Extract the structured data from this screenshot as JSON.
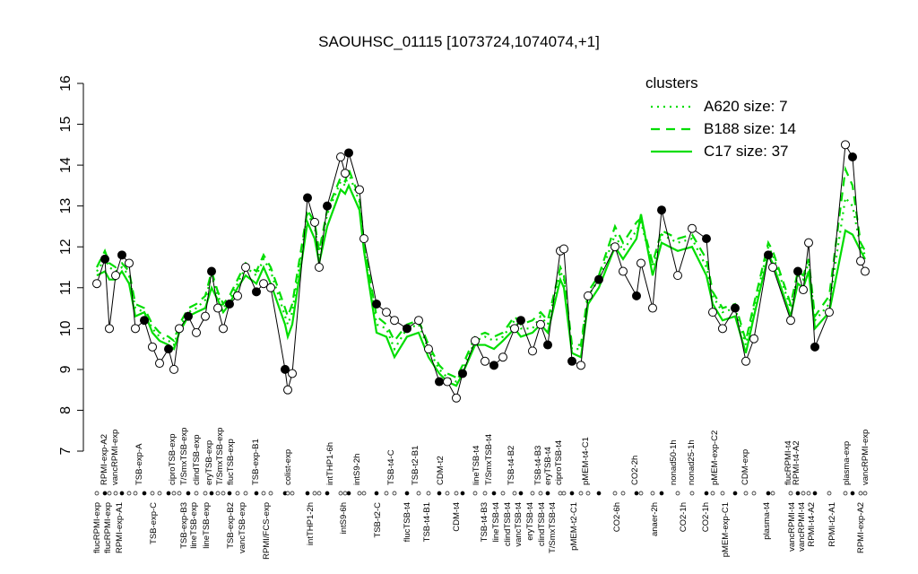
{
  "chart_data": {
    "type": "line",
    "title": "SAOUHSC_01115 [1073724,1074074,+1]",
    "legend_title": "clusters",
    "legend_color": "#00dd00",
    "x": [
      108,
      117,
      122,
      129,
      136,
      144,
      151,
      161,
      170,
      178,
      188,
      194,
      200,
      210,
      219,
      229,
      236,
      243,
      249,
      256,
      265,
      274,
      286,
      294,
      302,
      318,
      321,
      326,
      343,
      351,
      356,
      365,
      380,
      385,
      389,
      401,
      406,
      420,
      431,
      440,
      454,
      467,
      478,
      490,
      499,
      509,
      516,
      530,
      541,
      551,
      561,
      574,
      581,
      594,
      603,
      611,
      625,
      629,
      638,
      648,
      656,
      668,
      686,
      695,
      710,
      715,
      728,
      738,
      756,
      772,
      788,
      795,
      806,
      820,
      832,
      841,
      857,
      862,
      882,
      890,
      896,
      902,
      909,
      925,
      943,
      951,
      960,
      965
    ],
    "xlim": [
      100,
      972
    ],
    "ylim": [
      7,
      16
    ],
    "yticks": [
      7,
      8,
      9,
      10,
      11,
      12,
      13,
      14,
      15,
      16
    ],
    "series": [
      {
        "name": "A620 size: 7",
        "color": "#00dd00",
        "dash": "2,5",
        "values": [
          11.4,
          11.7,
          11.5,
          11.4,
          11.5,
          11.3,
          10.5,
          10.4,
          10.0,
          9.8,
          9.7,
          9.6,
          10.0,
          10.4,
          10.5,
          10.7,
          11.3,
          10.8,
          10.5,
          10.7,
          11.1,
          11.5,
          11.3,
          11.7,
          11.4,
          10.3,
          10.1,
          10.4,
          12.8,
          12.5,
          11.8,
          12.8,
          13.6,
          13.5,
          13.8,
          13.1,
          12.0,
          10.1,
          10.0,
          9.5,
          10.0,
          10.1,
          9.5,
          9.0,
          8.8,
          8.7,
          9.0,
          9.7,
          9.8,
          9.7,
          9.8,
          10.2,
          10.0,
          10.0,
          10.3,
          10.1,
          11.4,
          11.2,
          9.5,
          9.5,
          10.8,
          11.2,
          12.3,
          11.9,
          12.4,
          12.6,
          11.5,
          12.3,
          12.1,
          12.2,
          11.5,
          10.8,
          10.4,
          10.5,
          9.6,
          10.5,
          12.0,
          11.8,
          10.5,
          11.3,
          11.2,
          11.6,
          10.2,
          10.6,
          13.2,
          13.0,
          12.0,
          11.8
        ]
      },
      {
        "name": "B188 size: 14",
        "color": "#00dd00",
        "dash": "10,7",
        "values": [
          11.5,
          11.9,
          11.6,
          11.5,
          11.6,
          11.4,
          10.6,
          10.5,
          10.1,
          9.9,
          9.8,
          9.7,
          10.1,
          10.5,
          10.6,
          10.8,
          11.4,
          10.9,
          10.6,
          10.8,
          11.2,
          11.6,
          11.4,
          11.8,
          11.5,
          10.5,
          10.3,
          10.6,
          12.9,
          12.6,
          11.9,
          12.9,
          13.7,
          13.6,
          13.9,
          13.2,
          12.1,
          10.3,
          10.1,
          9.7,
          10.1,
          10.2,
          9.6,
          9.1,
          8.9,
          8.8,
          9.1,
          9.8,
          9.9,
          9.8,
          9.9,
          10.3,
          10.1,
          10.2,
          10.4,
          10.2,
          11.5,
          11.3,
          9.6,
          9.6,
          10.9,
          11.3,
          12.5,
          12.1,
          12.6,
          12.7,
          11.6,
          12.4,
          12.2,
          12.3,
          11.7,
          10.9,
          10.5,
          10.6,
          9.7,
          10.6,
          12.1,
          11.9,
          10.6,
          11.4,
          11.3,
          11.7,
          10.3,
          10.8,
          13.9,
          13.5,
          12.1,
          11.9
        ]
      },
      {
        "name": "C17 size: 37",
        "color": "#00dd00",
        "dash": "",
        "values": [
          11.3,
          11.4,
          11.2,
          11.2,
          11.4,
          11.1,
          10.3,
          10.4,
          9.9,
          9.7,
          9.6,
          9.5,
          9.9,
          10.3,
          10.4,
          10.5,
          11.0,
          10.7,
          10.4,
          10.6,
          11.0,
          11.3,
          11.1,
          11.5,
          11.1,
          10.1,
          9.8,
          10.1,
          12.6,
          12.2,
          11.6,
          12.5,
          13.4,
          13.3,
          13.5,
          12.9,
          11.9,
          9.9,
          9.8,
          9.3,
          9.8,
          9.9,
          9.3,
          8.9,
          8.7,
          8.6,
          8.9,
          9.6,
          9.6,
          9.5,
          9.7,
          10.0,
          9.8,
          9.9,
          10.1,
          9.9,
          11.2,
          11.0,
          9.4,
          9.3,
          10.6,
          11.0,
          12.0,
          11.7,
          12.2,
          12.8,
          11.3,
          12.1,
          11.9,
          12.0,
          11.3,
          10.6,
          10.2,
          10.3,
          9.4,
          10.3,
          11.8,
          11.6,
          10.3,
          11.1,
          11.0,
          11.4,
          10.0,
          10.4,
          12.4,
          12.3,
          11.9,
          11.7
        ]
      },
      {
        "color": "#000000",
        "markers": true,
        "values": [
          11.1,
          11.7,
          10.0,
          11.3,
          11.8,
          11.6,
          10.0,
          10.2,
          9.55,
          9.15,
          9.5,
          9.0,
          10.0,
          10.3,
          9.9,
          10.3,
          11.4,
          10.5,
          10.0,
          10.6,
          10.8,
          11.5,
          10.9,
          11.1,
          11.0,
          9.0,
          8.5,
          8.9,
          13.2,
          12.6,
          11.5,
          13.0,
          14.2,
          13.8,
          14.3,
          13.4,
          12.2,
          10.6,
          10.4,
          10.2,
          10.0,
          10.2,
          9.5,
          8.7,
          8.7,
          8.3,
          8.9,
          9.7,
          9.2,
          9.1,
          9.3,
          10.0,
          10.2,
          9.45,
          10.1,
          9.6,
          11.9,
          11.95,
          9.2,
          9.1,
          10.8,
          11.2,
          12.0,
          11.4,
          10.8,
          11.6,
          10.5,
          12.9,
          11.3,
          12.45,
          12.2,
          10.4,
          10.0,
          10.5,
          9.2,
          9.75,
          11.8,
          11.5,
          10.2,
          11.4,
          10.95,
          12.1,
          9.55,
          10.4,
          14.5,
          14.2,
          11.65,
          11.4
        ]
      }
    ],
    "xticks_top": [
      {
        "value": 116,
        "label": "RPMI-exp-A2"
      },
      {
        "value": 128,
        "label": "vancRPMI-exp"
      },
      {
        "value": 155,
        "label": "TSB-exp-A"
      },
      {
        "value": 192,
        "label": "ciproTSB-exp"
      },
      {
        "value": 205,
        "label": "T/SmxTSB-exp"
      },
      {
        "value": 219,
        "label": "clindTSB-exp"
      },
      {
        "value": 233,
        "label": "eryTSB-exp"
      },
      {
        "value": 245,
        "label": "T/SmxTSB-exp"
      },
      {
        "value": 257,
        "label": "flucTSB-exp"
      },
      {
        "value": 285,
        "label": "TSB-exp-B1"
      },
      {
        "value": 321,
        "label": "colist-exp"
      },
      {
        "value": 368,
        "label": "intTHP1-6h"
      },
      {
        "value": 398,
        "label": "intS9-2h"
      },
      {
        "value": 436,
        "label": "TSB-t4-C"
      },
      {
        "value": 463,
        "label": "TSB-t2-B1"
      },
      {
        "value": 491,
        "label": "CDM-t2"
      },
      {
        "value": 531,
        "label": "lineTSB-t4"
      },
      {
        "value": 545,
        "label": "T/SmxTSB-t4"
      },
      {
        "value": 570,
        "label": "TSB-t4-B2"
      },
      {
        "value": 600,
        "label": "TSB-t4-B3"
      },
      {
        "value": 611,
        "label": "eryTSB-t4"
      },
      {
        "value": 623,
        "label": "ciproTSB-t4"
      },
      {
        "value": 653,
        "label": "pMEM-t4-C1"
      },
      {
        "value": 708,
        "label": "CO2-2h"
      },
      {
        "value": 751,
        "label": "nonad50-1h"
      },
      {
        "value": 771,
        "label": "nonad25-1h"
      },
      {
        "value": 797,
        "label": "pMEM-exp-C2"
      },
      {
        "value": 831,
        "label": "CDM-exp"
      },
      {
        "value": 879,
        "label": "flucRPMI-t4"
      },
      {
        "value": 888,
        "label": "RPMI-t4-A2"
      },
      {
        "value": 944,
        "label": "plasma-exp"
      },
      {
        "value": 965,
        "label": "vancRPMI-exp"
      }
    ],
    "xticks_bottom": [
      {
        "value": 108,
        "label": "flucRPMI-exp"
      },
      {
        "value": 120,
        "label": "flucRPMI-exp"
      },
      {
        "value": 133,
        "label": "RPMI-exp-A1"
      },
      {
        "value": 171,
        "label": "TSB-exp-C"
      },
      {
        "value": 205,
        "label": "TSB-exp-B3"
      },
      {
        "value": 216,
        "label": "lineTSB-exp"
      },
      {
        "value": 230,
        "label": "lineTSB-exp"
      },
      {
        "value": 257,
        "label": "TSB-exp-B2"
      },
      {
        "value": 270,
        "label": "vancTSB-exp"
      },
      {
        "value": 297,
        "label": "RPMI/FCS-exp"
      },
      {
        "value": 346,
        "label": "intTHP1-2h"
      },
      {
        "value": 383,
        "label": "intS9-6h"
      },
      {
        "value": 421,
        "label": "TSB-t2-C"
      },
      {
        "value": 454,
        "label": "flucTSB-t4"
      },
      {
        "value": 476,
        "label": "TSB-t4-B1"
      },
      {
        "value": 509,
        "label": "CDM-t4"
      },
      {
        "value": 540,
        "label": "TSB-t4-B3"
      },
      {
        "value": 553,
        "label": "lineTSB-t4"
      },
      {
        "value": 566,
        "label": "clindTSB-t4"
      },
      {
        "value": 578,
        "label": "vancTSB-t4"
      },
      {
        "value": 591,
        "label": "eryTSB-t4"
      },
      {
        "value": 604,
        "label": "clindTSB-t4"
      },
      {
        "value": 616,
        "label": "T/SmxTSB-t4"
      },
      {
        "value": 640,
        "label": "pMEM-t2-C1"
      },
      {
        "value": 688,
        "label": "CO2-6h"
      },
      {
        "value": 730,
        "label": "anaer-2h"
      },
      {
        "value": 762,
        "label": "CO2-1h"
      },
      {
        "value": 787,
        "label": "CO2-1h"
      },
      {
        "value": 809,
        "label": "pMEM-exp-C1"
      },
      {
        "value": 855,
        "label": "plasma-t4"
      },
      {
        "value": 883,
        "label": "vancRPMI-t4"
      },
      {
        "value": 894,
        "label": "vancRPMI-t4"
      },
      {
        "value": 905,
        "label": "RPMI-t4-A2"
      },
      {
        "value": 928,
        "label": "RPMI-t2-A1"
      },
      {
        "value": 960,
        "label": "RPMI-exp-A2"
      }
    ]
  }
}
